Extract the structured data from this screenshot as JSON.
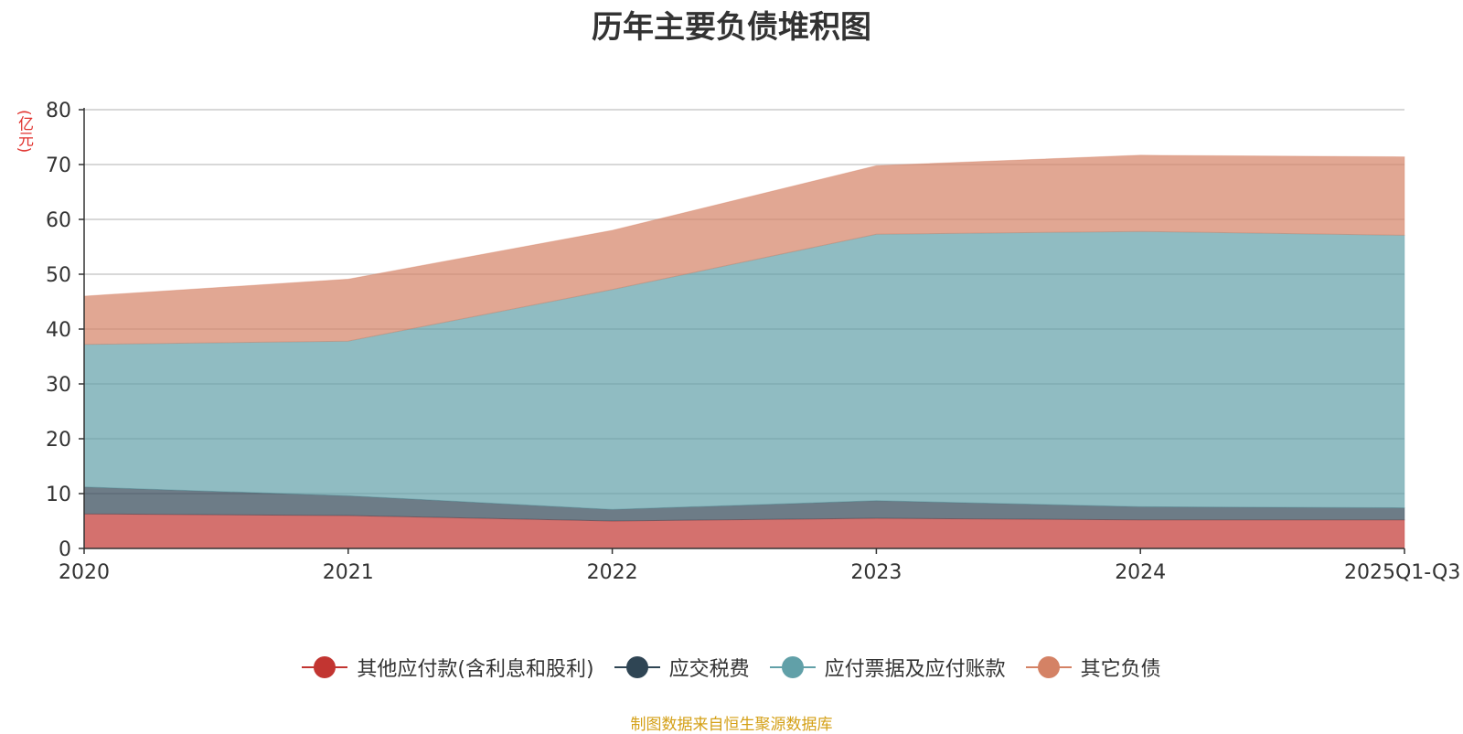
{
  "chart_data": {
    "type": "area",
    "stacked": true,
    "title": "历年主要负债堆积图",
    "ylabel": "(亿元)",
    "xlabel": "",
    "categories": [
      "2020",
      "2021",
      "2022",
      "2023",
      "2024",
      "2025Q1-Q3"
    ],
    "ylim": [
      0,
      80
    ],
    "yticks": [
      0,
      10,
      20,
      30,
      40,
      50,
      60,
      70,
      80
    ],
    "grid": true,
    "legend_position": "bottom",
    "series": [
      {
        "name": "其他应付款(含利息和股利)",
        "color": "#c23531",
        "values": [
          6.3,
          6.0,
          5.0,
          5.5,
          5.2,
          5.2
        ]
      },
      {
        "name": "应交税费",
        "color": "#2f4554",
        "values": [
          4.9,
          3.6,
          2.1,
          3.2,
          2.4,
          2.2
        ]
      },
      {
        "name": "应付票据及应付账款",
        "color": "#61a0a8",
        "values": [
          26.0,
          28.2,
          40.1,
          48.6,
          50.2,
          49.7
        ]
      },
      {
        "name": "其它负债",
        "color": "#d48265",
        "values": [
          8.8,
          11.3,
          10.8,
          12.5,
          13.9,
          14.3
        ]
      }
    ],
    "source": "制图数据来自恒生聚源数据库"
  }
}
